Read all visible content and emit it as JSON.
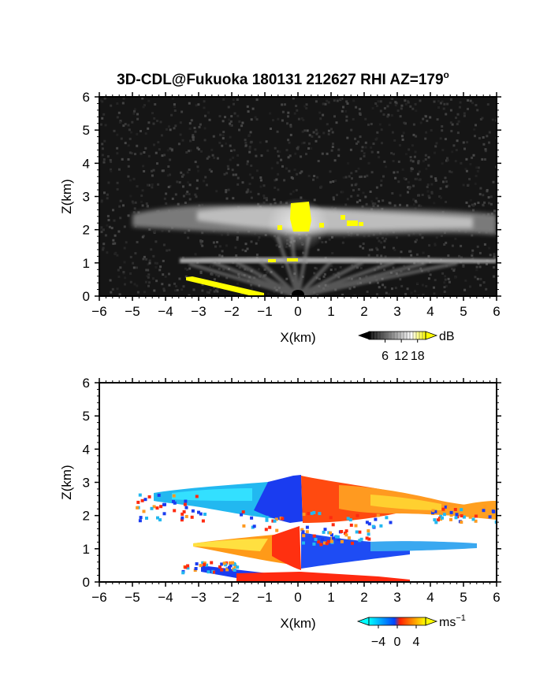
{
  "title": "3D-CDL@Fukuoka 180131 212627 RHI AZ=179",
  "title_superscript": "o",
  "chart_data": [
    {
      "type": "heatmap",
      "name": "backscatter-intensity",
      "xlabel": "X(km)",
      "ylabel": "Z(km)",
      "xlim": [
        -6,
        6
      ],
      "ylim": [
        0,
        6
      ],
      "xticks": [
        "-6",
        "-5",
        "-4",
        "-3",
        "-2",
        "-1",
        "0",
        "1",
        "2",
        "3",
        "4",
        "5",
        "6"
      ],
      "yticks": [
        "0",
        "1",
        "2",
        "3",
        "4",
        "5",
        "6"
      ],
      "colorbar": {
        "unit": "dB",
        "ticks": [
          "6",
          "12",
          "18"
        ],
        "colors": [
          "#000000",
          "#ffffff",
          "#ffff00"
        ],
        "range": [
          0,
          21
        ]
      },
      "background_color": "#151515",
      "features": [
        {
          "label": "upper cloud layer",
          "x_range": [
            -5.2,
            6.0
          ],
          "z_range": [
            1.9,
            2.6
          ],
          "level_db": 12
        },
        {
          "label": "lower layer",
          "x_range": [
            -2.3,
            6.0
          ],
          "z_range": [
            0.95,
            1.15
          ],
          "level_db": 13
        },
        {
          "label": "strong echo core",
          "x_range": [
            -0.2,
            0.5
          ],
          "z_range": [
            2.0,
            2.8
          ],
          "level_db": 20
        },
        {
          "label": "strong echo patches",
          "x_range": [
            0.8,
            2.6
          ],
          "z_range": [
            2.0,
            2.3
          ],
          "level_db": 19
        },
        {
          "label": "low-level strong echo",
          "x_range": [
            -3.5,
            -1.0
          ],
          "z_range": [
            0.0,
            0.5
          ],
          "level_db": 20
        }
      ]
    },
    {
      "type": "heatmap",
      "name": "doppler-velocity",
      "xlabel": "X(km)",
      "ylabel": "Z(km)",
      "xlim": [
        -6,
        6
      ],
      "ylim": [
        0,
        6
      ],
      "xticks": [
        "-6",
        "-5",
        "-4",
        "-3",
        "-2",
        "-1",
        "0",
        "1",
        "2",
        "3",
        "4",
        "5",
        "6"
      ],
      "yticks": [
        "0",
        "1",
        "2",
        "3",
        "4",
        "5",
        "6"
      ],
      "colorbar": {
        "unit": "ms",
        "unit_superscript": "−1",
        "ticks": [
          "−4",
          "0",
          "4"
        ],
        "colors": [
          "#00ffff",
          "#0044ff",
          "#ff2000",
          "#ffff00"
        ],
        "range": [
          -6,
          6
        ]
      },
      "background_color": "#ffffff",
      "features": [
        {
          "label": "upper layer left",
          "x_range": [
            -5.0,
            0.0
          ],
          "z_range": [
            1.8,
            2.8
          ],
          "velocity_ms": -3.5
        },
        {
          "label": "upper layer center-left",
          "x_range": [
            -1.0,
            0.0
          ],
          "z_range": [
            1.9,
            3.1
          ],
          "velocity_ms": -1.5
        },
        {
          "label": "upper layer right",
          "x_range": [
            0.0,
            6.0
          ],
          "z_range": [
            1.8,
            2.8
          ],
          "velocity_ms": 3.0
        },
        {
          "label": "lower layer left",
          "x_range": [
            -3.4,
            0.0
          ],
          "z_range": [
            0.3,
            1.2
          ],
          "velocity_ms": 4.0
        },
        {
          "label": "lower layer right",
          "x_range": [
            0.0,
            5.4
          ],
          "z_range": [
            0.3,
            1.2
          ],
          "velocity_ms": -3.0
        },
        {
          "label": "near-ground left",
          "x_range": [
            -3.4,
            0.0
          ],
          "z_range": [
            0.0,
            0.4
          ],
          "velocity_ms": -2.0
        },
        {
          "label": "near-ground right",
          "x_range": [
            0.0,
            3.5
          ],
          "z_range": [
            0.0,
            0.4
          ],
          "velocity_ms": 1.0
        }
      ]
    }
  ]
}
